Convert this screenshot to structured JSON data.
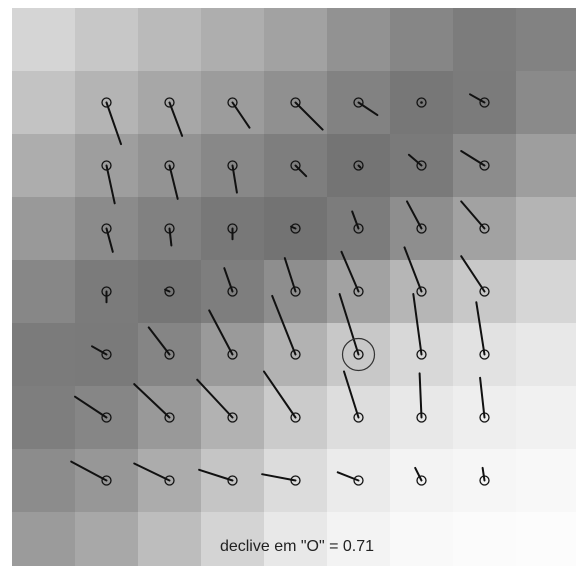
{
  "caption": "declive em \"O\" = 0.71",
  "grid": {
    "rows": 9,
    "cols": 9,
    "gray_levels": [
      [
        "#d5d5d5",
        "#c7c7c7",
        "#bababa",
        "#aeaeae",
        "#a2a2a2",
        "#929292",
        "#868686",
        "#7c7c7c",
        "#828282"
      ],
      [
        "#c3c3c3",
        "#b4b4b4",
        "#a7a7a7",
        "#9c9c9c",
        "#909090",
        "#828282",
        "#777777",
        "#7b7b7b",
        "#8a8a8a"
      ],
      [
        "#adadad",
        "#9e9e9e",
        "#939393",
        "#888888",
        "#7e7e7e",
        "#747474",
        "#7a7a7a",
        "#8c8c8c",
        "#9e9e9e"
      ],
      [
        "#999999",
        "#8b8b8b",
        "#818181",
        "#787878",
        "#737373",
        "#7c7c7c",
        "#8e8e8e",
        "#a2a2a2",
        "#b4b4b4"
      ],
      [
        "#878787",
        "#7b7b7b",
        "#767676",
        "#7e7e7e",
        "#8e8e8e",
        "#a2a2a2",
        "#b6b6b6",
        "#c8c8c8",
        "#d6d6d6"
      ],
      [
        "#7b7b7b",
        "#7a7a7a",
        "#858585",
        "#9a9a9a",
        "#b2b2b2",
        "#c8c8c8",
        "#d8d8d8",
        "#e2e2e2",
        "#e8e8e8"
      ],
      [
        "#7e7e7e",
        "#868686",
        "#999999",
        "#b2b2b2",
        "#cbcbcb",
        "#dddddd",
        "#e8e8e8",
        "#eeeeee",
        "#f1f1f1"
      ],
      [
        "#8c8c8c",
        "#979797",
        "#acacac",
        "#c5c5c5",
        "#dcdcdc",
        "#ebebeb",
        "#f3f3f3",
        "#f6f6f6",
        "#f8f8f8"
      ],
      [
        "#9b9b9b",
        "#a8a8a8",
        "#bdbdbd",
        "#d4d4d4",
        "#e8e8e8",
        "#f3f3f3",
        "#f9f9f9",
        "#fbfbfb",
        "#fcfcfc"
      ]
    ]
  },
  "vectors": [
    [
      {
        "dx": 0.23,
        "dy": 0.66
      },
      {
        "dx": 0.2,
        "dy": 0.53
      },
      {
        "dx": 0.27,
        "dy": 0.4
      },
      {
        "dx": 0.43,
        "dy": 0.43
      },
      {
        "dx": 0.3,
        "dy": 0.2
      },
      {
        "dx": 0,
        "dy": 0
      },
      {
        "dx": -0.23,
        "dy": -0.13
      }
    ],
    [
      {
        "dx": 0.13,
        "dy": 0.6
      },
      {
        "dx": 0.13,
        "dy": 0.53
      },
      {
        "dx": 0.07,
        "dy": 0.43
      },
      {
        "dx": 0.17,
        "dy": 0.17
      },
      {
        "dx": 0.03,
        "dy": 0.03
      },
      {
        "dx": -0.2,
        "dy": -0.17
      },
      {
        "dx": -0.37,
        "dy": -0.23
      }
    ],
    [
      {
        "dx": 0.1,
        "dy": 0.37
      },
      {
        "dx": 0.03,
        "dy": 0.27
      },
      {
        "dx": 0,
        "dy": 0.17
      },
      {
        "dx": -0.07,
        "dy": -0.03
      },
      {
        "dx": -0.1,
        "dy": -0.27
      },
      {
        "dx": -0.23,
        "dy": -0.43
      },
      {
        "dx": -0.37,
        "dy": -0.43
      }
    ],
    [
      {
        "dx": 0,
        "dy": 0.17
      },
      {
        "dx": -0.07,
        "dy": -0.03
      },
      {
        "dx": -0.13,
        "dy": -0.37
      },
      {
        "dx": -0.17,
        "dy": -0.53
      },
      {
        "dx": -0.27,
        "dy": -0.63
      },
      {
        "dx": -0.27,
        "dy": -0.7
      },
      {
        "dx": -0.37,
        "dy": -0.56
      }
    ],
    [
      {
        "dx": -0.23,
        "dy": -0.13
      },
      {
        "dx": -0.33,
        "dy": -0.43
      },
      {
        "dx": -0.37,
        "dy": -0.7
      },
      {
        "dx": -0.37,
        "dy": -0.93
      },
      {
        "dx": -0.3,
        "dy": -0.96
      },
      {
        "dx": -0.13,
        "dy": -0.96
      },
      {
        "dx": -0.13,
        "dy": -0.83
      }
    ],
    [
      {
        "dx": -0.5,
        "dy": -0.33
      },
      {
        "dx": -0.56,
        "dy": -0.53
      },
      {
        "dx": -0.56,
        "dy": -0.6
      },
      {
        "dx": -0.5,
        "dy": -0.73
      },
      {
        "dx": -0.23,
        "dy": -0.73
      },
      {
        "dx": -0.03,
        "dy": -0.7
      },
      {
        "dx": -0.07,
        "dy": -0.63
      }
    ],
    [
      {
        "dx": -0.56,
        "dy": -0.3
      },
      {
        "dx": -0.56,
        "dy": -0.27
      },
      {
        "dx": -0.53,
        "dy": -0.17
      },
      {
        "dx": -0.53,
        "dy": -0.1
      },
      {
        "dx": -0.33,
        "dy": -0.13
      },
      {
        "dx": -0.1,
        "dy": -0.2
      },
      {
        "dx": -0.03,
        "dy": -0.2
      }
    ]
  ],
  "highlight": {
    "row": 4,
    "col": 4
  },
  "colors": {
    "arrow": "#111111",
    "highlight_ring": "#333333",
    "caption_bg": "#ffffff"
  }
}
